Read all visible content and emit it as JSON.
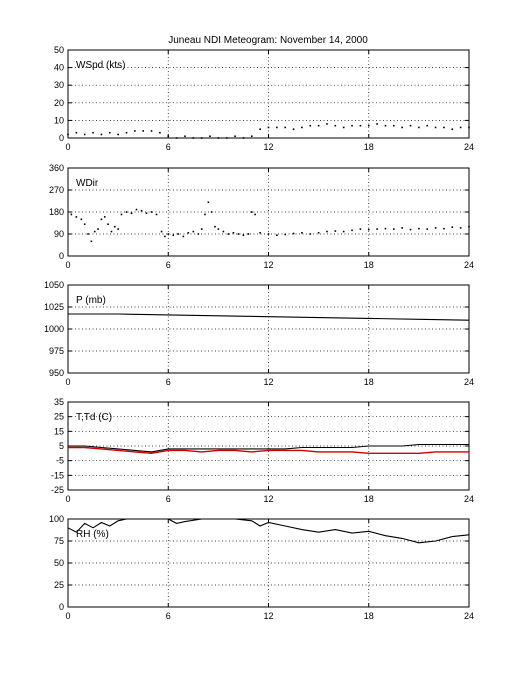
{
  "title": "Juneau NDI Meteogram:  November 14, 2000",
  "chart_data": [
    {
      "type": "scatter",
      "label": "WSpd (kts)",
      "xlim": [
        0,
        24
      ],
      "ylim": [
        0,
        50
      ],
      "xticks": [
        0,
        6,
        12,
        18,
        24
      ],
      "yticks": [
        0,
        10,
        20,
        30,
        40,
        50
      ],
      "grid": true,
      "series": [
        {
          "color": "#000000",
          "x": [
            0,
            0.5,
            1,
            1.5,
            2,
            2.5,
            3,
            3.5,
            4,
            4.5,
            5,
            5.5,
            6,
            6.5,
            7,
            7.5,
            8,
            8.5,
            9,
            9.5,
            10,
            10.5,
            11,
            11.5,
            12,
            12.5,
            13,
            13.5,
            14,
            14.5,
            15,
            15.5,
            16,
            16.5,
            17,
            17.5,
            18,
            18.5,
            19,
            19.5,
            20,
            20.5,
            21,
            21.5,
            22,
            22.5,
            23,
            23.5,
            24
          ],
          "y": [
            2,
            3,
            2,
            3,
            2,
            3,
            2,
            3,
            4,
            4,
            4,
            3,
            1,
            0,
            1,
            0,
            0,
            1,
            0,
            0,
            1,
            0,
            1,
            5,
            6,
            6,
            6,
            5,
            6,
            7,
            7,
            8,
            7,
            6,
            7,
            7,
            7,
            8,
            7,
            7,
            6,
            7,
            6,
            7,
            6,
            6,
            5,
            6,
            6
          ]
        }
      ]
    },
    {
      "type": "scatter",
      "label": "WDir",
      "xlim": [
        0,
        24
      ],
      "ylim": [
        0,
        360
      ],
      "xticks": [
        0,
        6,
        12,
        18,
        24
      ],
      "yticks": [
        0,
        90,
        180,
        270,
        360
      ],
      "grid": true,
      "series": [
        {
          "color": "#000000",
          "x": [
            0.2,
            0.5,
            0.8,
            1.0,
            1.2,
            1.4,
            1.6,
            1.8,
            2.0,
            2.2,
            2.4,
            2.6,
            2.8,
            3.0,
            3.2,
            3.5,
            3.8,
            4.1,
            4.4,
            4.7,
            5.0,
            5.3,
            5.6,
            5.8,
            6.0,
            6.3,
            6.6,
            6.9,
            7.2,
            7.5,
            7.8,
            8.0,
            8.2,
            8.4,
            8.6,
            8.8,
            9.0,
            9.3,
            9.6,
            9.9,
            10.2,
            10.5,
            10.8,
            11.0,
            11.2,
            11.5,
            12.0,
            12.5,
            13.0,
            13.5,
            14.0,
            14.5,
            15.0,
            15.5,
            16.0,
            16.5,
            17.0,
            17.5,
            18.0,
            18.5,
            19.0,
            19.5,
            20.0,
            20.5,
            21.0,
            21.5,
            22.0,
            22.5,
            23.0,
            23.5,
            24.0
          ],
          "y": [
            170,
            160,
            150,
            130,
            90,
            60,
            100,
            110,
            150,
            160,
            130,
            100,
            120,
            110,
            170,
            180,
            175,
            190,
            185,
            175,
            180,
            170,
            100,
            80,
            90,
            85,
            90,
            80,
            95,
            100,
            90,
            110,
            170,
            220,
            180,
            120,
            110,
            100,
            90,
            95,
            90,
            85,
            90,
            180,
            170,
            95,
            90,
            85,
            88,
            92,
            95,
            90,
            95,
            100,
            102,
            100,
            105,
            110,
            108,
            110,
            112,
            110,
            115,
            108,
            112,
            110,
            115,
            112,
            118,
            115,
            120
          ]
        }
      ]
    },
    {
      "type": "line",
      "label": "P (mb)",
      "xlim": [
        0,
        24
      ],
      "ylim": [
        950,
        1050
      ],
      "xticks": [
        0,
        6,
        12,
        18,
        24
      ],
      "yticks": [
        950,
        975,
        1000,
        1025,
        1050
      ],
      "grid": true,
      "series": [
        {
          "color": "#000000",
          "x": [
            0,
            3,
            6,
            9,
            12,
            15,
            18,
            21,
            24
          ],
          "y": [
            1017,
            1017,
            1016,
            1015,
            1014,
            1013,
            1012,
            1011,
            1010
          ]
        }
      ]
    },
    {
      "type": "line",
      "label": "T,Td (C)",
      "xlim": [
        0,
        24
      ],
      "ylim": [
        -25,
        35
      ],
      "xticks": [
        0,
        6,
        12,
        18,
        24
      ],
      "yticks": [
        -25,
        -15,
        -5,
        5,
        15,
        25,
        35
      ],
      "grid": true,
      "series": [
        {
          "color": "#000000",
          "x": [
            0,
            1,
            2,
            3,
            4,
            5,
            6,
            7,
            8,
            9,
            10,
            11,
            12,
            13,
            14,
            15,
            16,
            17,
            18,
            19,
            20,
            21,
            22,
            23,
            24
          ],
          "y": [
            5,
            5,
            4,
            3,
            2,
            1,
            3,
            3,
            3,
            3,
            3,
            3,
            3,
            3,
            4,
            4,
            4,
            4,
            5,
            5,
            5,
            6,
            6,
            6,
            6
          ]
        },
        {
          "color": "#cc0000",
          "x": [
            0,
            1,
            2,
            3,
            4,
            5,
            6,
            7,
            8,
            9,
            10,
            11,
            12,
            13,
            14,
            15,
            16,
            17,
            18,
            19,
            20,
            21,
            22,
            23,
            24
          ],
          "y": [
            4,
            4,
            3,
            2,
            1,
            0,
            2,
            2,
            1,
            2,
            2,
            1,
            2,
            2,
            2,
            1,
            1,
            1,
            0,
            0,
            0,
            0,
            1,
            1,
            1
          ]
        }
      ]
    },
    {
      "type": "line",
      "label": "RH (%)",
      "xlim": [
        0,
        24
      ],
      "ylim": [
        0,
        100
      ],
      "xticks": [
        0,
        6,
        12,
        18,
        24
      ],
      "yticks": [
        0,
        25,
        50,
        75,
        100
      ],
      "grid": true,
      "series": [
        {
          "color": "#000000",
          "x": [
            0,
            0.5,
            1,
            1.5,
            2,
            2.5,
            3,
            3.5,
            4,
            6,
            6.5,
            7,
            8,
            9,
            10,
            11,
            11.5,
            12,
            13,
            14,
            15,
            16,
            17,
            18,
            19,
            20,
            21,
            22,
            23,
            24
          ],
          "y": [
            90,
            85,
            95,
            90,
            96,
            92,
            98,
            100,
            100,
            100,
            95,
            97,
            100,
            100,
            100,
            98,
            92,
            96,
            92,
            88,
            85,
            88,
            84,
            86,
            81,
            78,
            73,
            75,
            80,
            82
          ]
        }
      ]
    }
  ]
}
